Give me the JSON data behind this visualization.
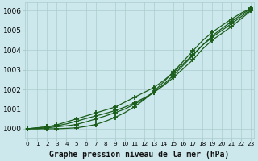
{
  "title": "Graphe pression niveau de la mer (hPa)",
  "ylabel_ticks": [
    1000,
    1001,
    1002,
    1003,
    1004,
    1005,
    1006
  ],
  "ylim": [
    999.5,
    1006.4
  ],
  "xlim": [
    -0.3,
    23.3
  ],
  "bg_color": "#cce8ec",
  "grid_color": "#aacccc",
  "line_color": "#1a5c1a",
  "series": [
    [
      1000.0,
      1000.05,
      1000.1,
      1000.2,
      1000.35,
      1000.5,
      1000.65,
      1000.8,
      1000.95,
      1001.1,
      1001.35,
      1001.6,
      1001.85,
      1002.1,
      1002.45,
      1002.85,
      1003.3,
      1003.75,
      1004.25,
      1004.65,
      1005.0,
      1005.35,
      1005.7,
      1006.05
    ],
    [
      1000.0,
      1000.05,
      1000.1,
      1000.15,
      1000.25,
      1000.38,
      1000.52,
      1000.65,
      1000.78,
      1000.92,
      1001.1,
      1001.32,
      1001.57,
      1001.85,
      1002.2,
      1002.6,
      1003.05,
      1003.5,
      1004.05,
      1004.5,
      1004.85,
      1005.2,
      1005.6,
      1006.0
    ],
    [
      1000.0,
      1000.0,
      1000.05,
      1000.1,
      1000.15,
      1000.22,
      1000.35,
      1000.5,
      1000.65,
      1000.82,
      1001.0,
      1001.25,
      1001.52,
      1001.85,
      1002.25,
      1002.72,
      1003.22,
      1003.72,
      1004.25,
      1004.72,
      1005.1,
      1005.45,
      1005.8,
      1006.1
    ],
    [
      1000.0,
      1000.0,
      1000.0,
      1000.0,
      1000.02,
      1000.05,
      1000.12,
      1000.22,
      1000.38,
      1000.58,
      1000.82,
      1001.12,
      1001.48,
      1001.9,
      1002.38,
      1002.9,
      1003.42,
      1003.95,
      1004.48,
      1004.9,
      1005.25,
      1005.58,
      1005.88,
      1006.12
    ]
  ],
  "marker_every": [
    [
      0,
      2,
      3,
      5,
      7,
      9,
      11,
      13,
      15,
      17,
      19,
      21,
      23
    ],
    [
      0,
      2,
      3,
      5,
      7,
      9,
      11,
      13,
      15,
      17,
      19,
      21,
      23
    ],
    [
      0,
      2,
      3,
      5,
      7,
      9,
      11,
      13,
      15,
      17,
      19,
      21,
      23
    ],
    [
      0,
      2,
      3,
      5,
      7,
      9,
      11,
      13,
      15,
      17,
      19,
      21,
      23
    ]
  ]
}
